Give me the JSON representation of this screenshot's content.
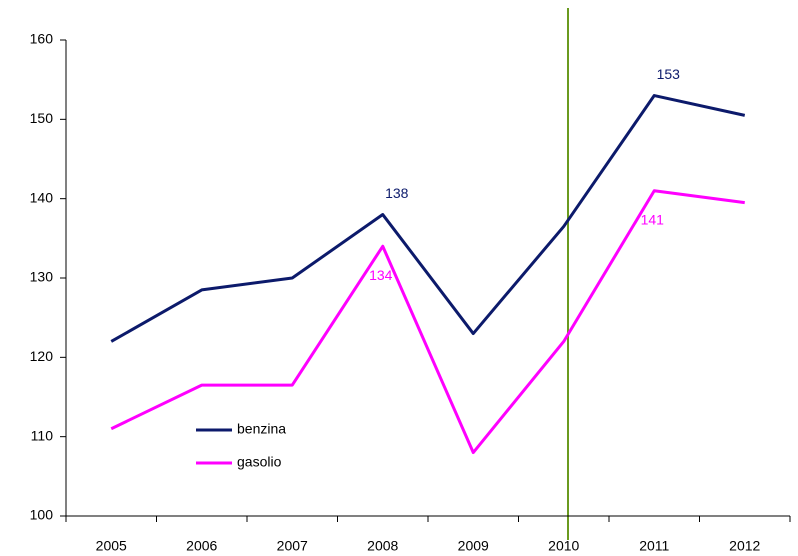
{
  "chart_data": {
    "type": "line",
    "categories": [
      "2005",
      "2006",
      "2007",
      "2008",
      "2009",
      "2010",
      "2011",
      "2012"
    ],
    "series": [
      {
        "name": "benzina",
        "color": "#0c1a6b",
        "values": [
          122,
          128.5,
          130,
          138,
          123,
          136.5,
          153,
          150.5
        ],
        "value_labels": [
          null,
          null,
          null,
          "138",
          null,
          null,
          "153",
          null
        ]
      },
      {
        "name": "gasolio",
        "color": "#ff00ff",
        "values": [
          111,
          116.5,
          116.5,
          134,
          108,
          122,
          141,
          139.5
        ],
        "value_labels": [
          null,
          null,
          null,
          "134",
          null,
          null,
          "141",
          null
        ]
      }
    ],
    "ylim": [
      100,
      160
    ],
    "yticks": [
      100,
      110,
      120,
      130,
      140,
      150,
      160
    ],
    "grid": false,
    "legend": "lower left"
  }
}
